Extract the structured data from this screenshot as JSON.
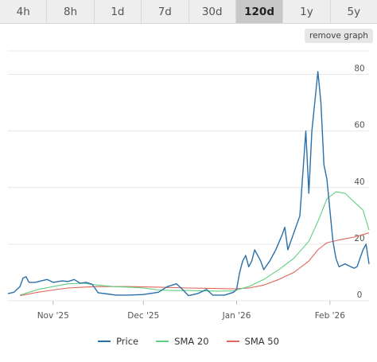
{
  "tabs": [
    {
      "label": "4h",
      "active": false
    },
    {
      "label": "8h",
      "active": false
    },
    {
      "label": "1d",
      "active": false
    },
    {
      "label": "7d",
      "active": false
    },
    {
      "label": "30d",
      "active": false
    },
    {
      "label": "120d",
      "active": true
    },
    {
      "label": "1y",
      "active": false
    },
    {
      "label": "5y",
      "active": false
    }
  ],
  "remove_graph_label": "remove graph",
  "chart_data": {
    "type": "line",
    "x_range": [
      0,
      120
    ],
    "ylim": [
      0,
      90
    ],
    "y_ticks": [
      0,
      20,
      40,
      60,
      80
    ],
    "x_ticks": [
      {
        "label": "Nov '25",
        "x": 15
      },
      {
        "label": "Dec '25",
        "x": 45
      },
      {
        "label": "Jan '26",
        "x": 76
      },
      {
        "label": "Feb '26",
        "x": 107
      }
    ],
    "grid": "horizontal",
    "legend_position": "bottom",
    "series": [
      {
        "name": "Price",
        "color": "#2a6fa8",
        "points": [
          [
            0,
            2.5
          ],
          [
            2,
            3.0
          ],
          [
            4,
            5.0
          ],
          [
            5,
            8.0
          ],
          [
            6,
            8.5
          ],
          [
            7,
            6.5
          ],
          [
            9,
            6.5
          ],
          [
            11,
            7.0
          ],
          [
            13,
            7.5
          ],
          [
            15,
            6.5
          ],
          [
            18,
            7.0
          ],
          [
            20,
            6.8
          ],
          [
            22,
            7.5
          ],
          [
            24,
            6.2
          ],
          [
            26,
            6.5
          ],
          [
            28,
            5.8
          ],
          [
            30,
            2.8
          ],
          [
            33,
            2.4
          ],
          [
            36,
            2.0
          ],
          [
            40,
            2.0
          ],
          [
            45,
            2.2
          ],
          [
            50,
            3.0
          ],
          [
            53,
            5.0
          ],
          [
            56,
            6.0
          ],
          [
            58,
            4.0
          ],
          [
            60,
            1.8
          ],
          [
            63,
            2.5
          ],
          [
            66,
            4.0
          ],
          [
            68,
            2.0
          ],
          [
            72,
            2.0
          ],
          [
            75,
            3.0
          ],
          [
            76,
            4.0
          ],
          [
            77,
            10.0
          ],
          [
            78,
            14.0
          ],
          [
            79,
            16.0
          ],
          [
            80,
            12.0
          ],
          [
            81,
            14.0
          ],
          [
            82,
            18.0
          ],
          [
            84,
            14.0
          ],
          [
            85,
            11.0
          ],
          [
            87,
            14.0
          ],
          [
            89,
            18.0
          ],
          [
            91,
            23.0
          ],
          [
            92,
            26.0
          ],
          [
            93,
            18.0
          ],
          [
            95,
            24.0
          ],
          [
            97,
            30.0
          ],
          [
            99,
            60.0
          ],
          [
            100,
            38.0
          ],
          [
            101,
            60.0
          ],
          [
            103,
            81.0
          ],
          [
            104,
            70.0
          ],
          [
            105,
            48.0
          ],
          [
            106,
            43.0
          ],
          [
            108,
            21.0
          ],
          [
            109,
            15.0
          ],
          [
            110,
            12.0
          ],
          [
            112,
            13.0
          ],
          [
            115,
            11.5
          ],
          [
            116,
            12.0
          ],
          [
            118,
            18.0
          ],
          [
            119,
            20.0
          ],
          [
            120,
            13.0
          ]
        ]
      },
      {
        "name": "SMA 20",
        "color": "#5fcf80",
        "points": [
          [
            4,
            2.0
          ],
          [
            10,
            4.0
          ],
          [
            15,
            5.0
          ],
          [
            20,
            6.0
          ],
          [
            25,
            6.2
          ],
          [
            30,
            5.5
          ],
          [
            35,
            5.0
          ],
          [
            40,
            4.8
          ],
          [
            45,
            4.5
          ],
          [
            50,
            3.8
          ],
          [
            55,
            3.6
          ],
          [
            60,
            3.6
          ],
          [
            65,
            3.5
          ],
          [
            70,
            3.4
          ],
          [
            75,
            3.5
          ],
          [
            80,
            5.0
          ],
          [
            85,
            7.5
          ],
          [
            90,
            11.0
          ],
          [
            95,
            15.0
          ],
          [
            100,
            21.0
          ],
          [
            103,
            28.0
          ],
          [
            106,
            36.0
          ],
          [
            109,
            38.5
          ],
          [
            112,
            38.0
          ],
          [
            115,
            35.0
          ],
          [
            118,
            32.0
          ],
          [
            120,
            25.0
          ]
        ]
      },
      {
        "name": "SMA 50",
        "color": "#e0655a",
        "points": [
          [
            4,
            1.8
          ],
          [
            10,
            3.0
          ],
          [
            15,
            3.8
          ],
          [
            20,
            4.5
          ],
          [
            25,
            4.8
          ],
          [
            30,
            5.0
          ],
          [
            40,
            5.0
          ],
          [
            50,
            4.8
          ],
          [
            60,
            4.5
          ],
          [
            70,
            4.3
          ],
          [
            75,
            4.2
          ],
          [
            80,
            4.5
          ],
          [
            85,
            5.5
          ],
          [
            90,
            7.5
          ],
          [
            95,
            10.0
          ],
          [
            100,
            14.0
          ],
          [
            103,
            18.0
          ],
          [
            106,
            20.5
          ],
          [
            110,
            21.5
          ],
          [
            115,
            22.5
          ],
          [
            120,
            24.0
          ]
        ]
      }
    ]
  }
}
